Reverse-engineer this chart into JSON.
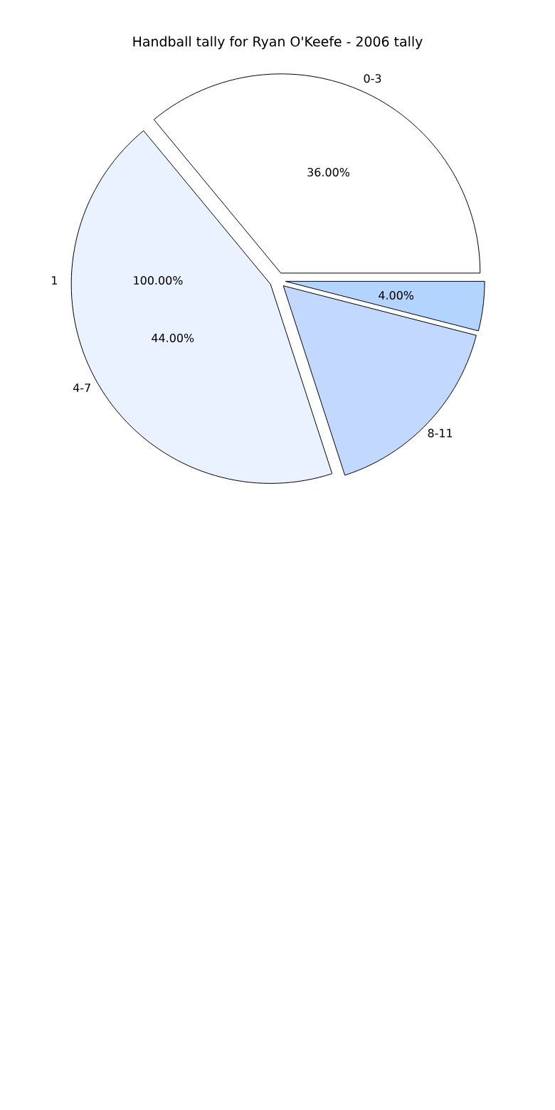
{
  "chart_data": {
    "type": "pie",
    "title": "Handball tally for Ryan O'Keefe - 2006 tally",
    "categories": [
      "0-3",
      "4-7",
      "8-11",
      null
    ],
    "values": [
      36,
      44,
      16,
      4
    ],
    "value_labels": [
      "36.00%",
      "44.00%",
      null,
      "4.00%"
    ],
    "colors": [
      "#ffffff",
      "#eaf1ff",
      "#c3d8ff",
      "#b3d4ff"
    ],
    "annotations": [
      "1",
      "100.00%"
    ]
  }
}
